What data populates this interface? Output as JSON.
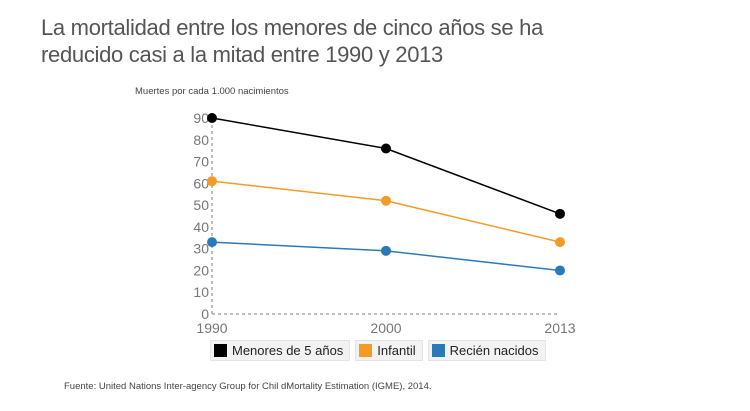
{
  "title_line1": "La mortalidad entre los menores de cinco años se ha",
  "title_line2": "reducido casi a la mitad entre 1990 y 2013",
  "source": "Fuente: United Nations Inter-agency Group for Chil dMortality Estimation (IGME), 2014.",
  "chart_data": {
    "type": "line",
    "ylabel": "Muertes por cada 1.000 nacimientos",
    "categories": [
      "1990",
      "2000",
      "2013"
    ],
    "ylim": [
      0,
      90
    ],
    "yticks": [
      0,
      10,
      20,
      30,
      40,
      50,
      60,
      70,
      80,
      90
    ],
    "series": [
      {
        "name": "Menores de 5 años",
        "color": "#000000",
        "values": [
          90,
          76,
          46
        ]
      },
      {
        "name": "Infantil",
        "color": "#f39c25",
        "values": [
          61,
          52,
          33
        ]
      },
      {
        "name": "Recién nacidos",
        "color": "#2a7ab8",
        "values": [
          33,
          29,
          20
        ]
      }
    ]
  }
}
